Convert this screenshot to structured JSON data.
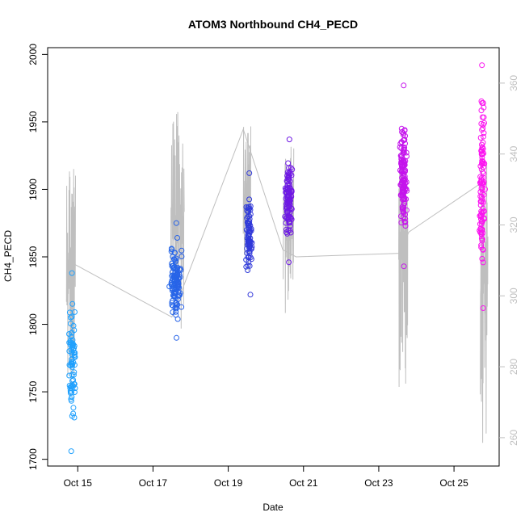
{
  "chart_data": {
    "type": "scatter",
    "title": "ATOM3 Northbound CH4_PECD",
    "xlabel": "Date",
    "ylabel": "CH4_PECD",
    "x_ticks": [
      "Oct 15",
      "Oct 17",
      "Oct 19",
      "Oct 21",
      "Oct 23",
      "Oct 25"
    ],
    "xlim": [
      "Oct 14.2",
      "Oct 26.2"
    ],
    "y_ticks": [
      1700,
      1750,
      1800,
      1850,
      1900,
      1950,
      2000
    ],
    "ylim": [
      1695,
      2005
    ],
    "y2_ticks": [
      260,
      280,
      300,
      320,
      340,
      360
    ],
    "y2lim": [
      252,
      370
    ],
    "grid": false,
    "colors": {
      "points_start": "#1fa6ff",
      "points_mid": "#2d3bd9",
      "points_mid2": "#7a14e6",
      "points_end": "#ff14f0",
      "secondary_line": "#bfbfbf",
      "axis": "#000000",
      "secondary_axis": "#bfbfbf"
    },
    "clusters": [
      {
        "x_center": 14.85,
        "x_spread": 0.12,
        "y_range": [
          1706,
          1838
        ],
        "n": 80
      },
      {
        "x_center": 17.6,
        "x_spread": 0.2,
        "y_range": [
          1790,
          1875
        ],
        "n": 120
      },
      {
        "x_center": 19.55,
        "x_spread": 0.1,
        "y_range": [
          1822,
          1912
        ],
        "n": 90
      },
      {
        "x_center": 20.6,
        "x_spread": 0.13,
        "y_range": [
          1846,
          1937
        ],
        "n": 110
      },
      {
        "x_center": 23.65,
        "x_spread": 0.12,
        "y_range": [
          1843,
          1977
        ],
        "n": 130
      },
      {
        "x_center": 25.75,
        "x_spread": 0.1,
        "y_range": [
          1812,
          1992
        ],
        "n": 110
      }
    ],
    "secondary_series": {
      "name": "",
      "axis": "right",
      "connectors": [
        {
          "x": 14.9,
          "y": 309
        },
        {
          "x": 17.5,
          "y": 294
        },
        {
          "x": 19.4,
          "y": 347
        },
        {
          "x": 20.45,
          "y": 313
        },
        {
          "x": 20.8,
          "y": 311
        },
        {
          "x": 23.55,
          "y": 312
        },
        {
          "x": 23.8,
          "y": 318
        },
        {
          "x": 25.75,
          "y": 332
        }
      ],
      "spikes": [
        {
          "x_center": 14.82,
          "x_spread": 0.12,
          "y_range": [
            270,
            342
          ],
          "n": 40
        },
        {
          "x_center": 17.65,
          "x_spread": 0.18,
          "y_range": [
            290,
            352
          ],
          "n": 45
        },
        {
          "x_center": 19.5,
          "x_spread": 0.1,
          "y_range": [
            300,
            348
          ],
          "n": 30
        },
        {
          "x_center": 20.6,
          "x_spread": 0.14,
          "y_range": [
            295,
            345
          ],
          "n": 40
        },
        {
          "x_center": 23.65,
          "x_spread": 0.12,
          "y_range": [
            274,
            342
          ],
          "n": 50
        },
        {
          "x_center": 25.8,
          "x_spread": 0.1,
          "y_range": [
            257,
            338
          ],
          "n": 40
        }
      ]
    }
  }
}
